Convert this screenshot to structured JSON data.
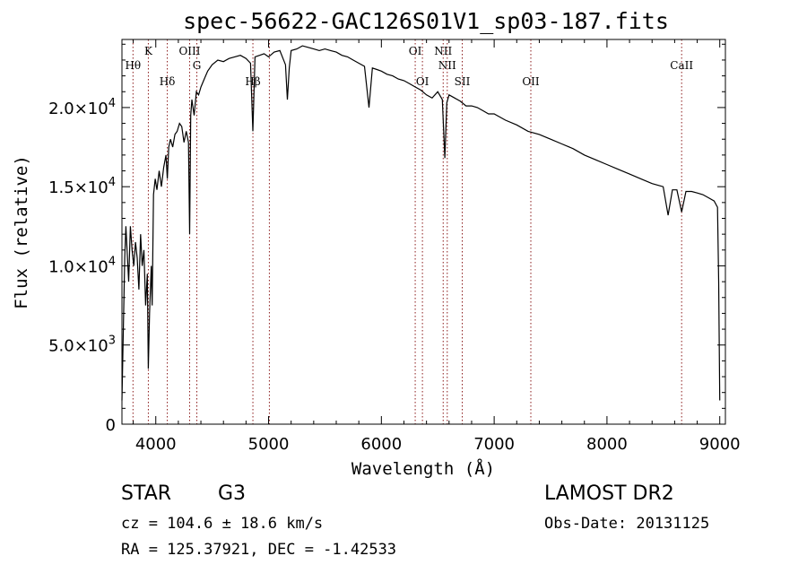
{
  "chart_data": {
    "type": "line",
    "title": "spec-56622-GAC126S01V1_sp03-187.fits",
    "xlabel": "Wavelength (Å)",
    "ylabel": "Flux (relative)",
    "xlim": [
      3700,
      9050
    ],
    "ylim": [
      0,
      24300
    ],
    "grid": false,
    "x_ticks": [
      {
        "value": 4000,
        "label": "4000"
      },
      {
        "value": 5000,
        "label": "5000"
      },
      {
        "value": 6000,
        "label": "6000"
      },
      {
        "value": 7000,
        "label": "7000"
      },
      {
        "value": 8000,
        "label": "8000"
      },
      {
        "value": 9000,
        "label": "9000"
      }
    ],
    "y_ticks": [
      {
        "value": 0,
        "mant": "0",
        "exp": ""
      },
      {
        "value": 5000,
        "mant": "5.0×10",
        "exp": "3"
      },
      {
        "value": 10000,
        "mant": "1.0×10",
        "exp": "4"
      },
      {
        "value": 15000,
        "mant": "1.5×10",
        "exp": "4"
      },
      {
        "value": 20000,
        "mant": "2.0×10",
        "exp": "4"
      }
    ],
    "lines": [
      {
        "label": "Hθ",
        "wave": 3798,
        "row": 1
      },
      {
        "label": "K",
        "wave": 3934,
        "row": 0
      },
      {
        "label": "Hδ",
        "wave": 4102,
        "row": 2
      },
      {
        "label": "OIII",
        "wave": 4300,
        "row": 0
      },
      {
        "label": "G",
        "wave": 4364,
        "row": 1
      },
      {
        "label": "Hβ",
        "wave": 4861,
        "row": 3
      },
      {
        "label": "",
        "wave": 5007,
        "row": 0
      },
      {
        "label": "OI",
        "wave": 6300,
        "row": 0
      },
      {
        "label": "OI",
        "wave": 6364,
        "row": 2
      },
      {
        "label": "NII",
        "wave": 6548,
        "row": 0
      },
      {
        "label": "NII",
        "wave": 6584,
        "row": 1
      },
      {
        "label": "SII",
        "wave": 6717,
        "row": 2
      },
      {
        "label": "OII",
        "wave": 7325,
        "row": 2
      },
      {
        "label": "CaII",
        "wave": 8662,
        "row": 1
      }
    ],
    "series": [
      {
        "name": "flux",
        "x": [
          3700,
          3715,
          3725,
          3735,
          3745,
          3760,
          3775,
          3790,
          3805,
          3820,
          3835,
          3850,
          3865,
          3880,
          3895,
          3910,
          3925,
          3934,
          3945,
          3960,
          3968,
          3980,
          3995,
          4010,
          4030,
          4050,
          4070,
          4090,
          4102,
          4115,
          4130,
          4150,
          4170,
          4190,
          4210,
          4230,
          4250,
          4270,
          4290,
          4300,
          4310,
          4320,
          4340,
          4360,
          4380,
          4400,
          4430,
          4460,
          4500,
          4550,
          4600,
          4650,
          4700,
          4750,
          4800,
          4840,
          4861,
          4880,
          4920,
          4960,
          5000,
          5050,
          5100,
          5150,
          5167,
          5183,
          5200,
          5250,
          5300,
          5350,
          5400,
          5450,
          5500,
          5550,
          5600,
          5650,
          5700,
          5750,
          5800,
          5850,
          5890,
          5920,
          5960,
          6000,
          6050,
          6100,
          6150,
          6200,
          6250,
          6300,
          6350,
          6400,
          6450,
          6500,
          6540,
          6563,
          6580,
          6600,
          6650,
          6700,
          6750,
          6800,
          6850,
          6900,
          6950,
          7000,
          7100,
          7200,
          7300,
          7400,
          7500,
          7600,
          7700,
          7800,
          7900,
          8000,
          8100,
          8200,
          8300,
          8400,
          8498,
          8542,
          8580,
          8620,
          8662,
          8700,
          8750,
          8800,
          8850,
          8900,
          8950,
          8980,
          8990,
          9000
        ],
        "values": [
          1500,
          7000,
          10500,
          12500,
          11000,
          9000,
          12500,
          11000,
          10000,
          11500,
          10500,
          8500,
          12000,
          10000,
          11000,
          7500,
          9500,
          3500,
          7000,
          10000,
          7500,
          14500,
          15500,
          14800,
          16000,
          15000,
          16200,
          17000,
          15500,
          17500,
          18000,
          17500,
          18300,
          18500,
          19000,
          18800,
          17800,
          18500,
          17800,
          12000,
          19500,
          20500,
          19500,
          21000,
          20800,
          21300,
          21800,
          22300,
          22700,
          23000,
          22900,
          23100,
          23200,
          23300,
          23100,
          22800,
          18500,
          23200,
          23300,
          23400,
          23200,
          23500,
          23600,
          22700,
          20500,
          22500,
          23600,
          23700,
          23900,
          23800,
          23700,
          23600,
          23700,
          23600,
          23500,
          23300,
          23200,
          23000,
          22800,
          22600,
          20000,
          22500,
          22400,
          22300,
          22100,
          22000,
          21800,
          21700,
          21500,
          21300,
          21100,
          20800,
          20600,
          21000,
          20500,
          16800,
          20300,
          20800,
          20600,
          20400,
          20100,
          20100,
          20000,
          19800,
          19600,
          19600,
          19200,
          18900,
          18500,
          18300,
          18000,
          17700,
          17400,
          17000,
          16700,
          16400,
          16100,
          15800,
          15500,
          15200,
          15000,
          13200,
          14800,
          14800,
          13400,
          14700,
          14700,
          14600,
          14500,
          14300,
          14100,
          13700,
          9000,
          1500
        ]
      }
    ]
  },
  "info": {
    "object_class": "STAR",
    "subclass": "G3",
    "survey": "LAMOST DR2",
    "redshift": "cz = 104.6 ± 18.6 km/s",
    "obs_date": "Obs-Date: 20131125",
    "coords": "RA = 125.37921, DEC =  -1.42533"
  }
}
